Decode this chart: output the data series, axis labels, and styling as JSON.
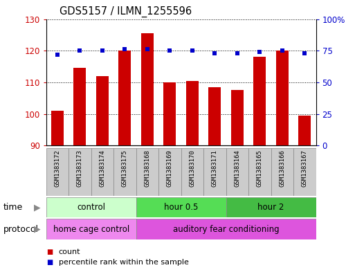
{
  "title": "GDS5157 / ILMN_1255596",
  "samples": [
    "GSM1383172",
    "GSM1383173",
    "GSM1383174",
    "GSM1383175",
    "GSM1383168",
    "GSM1383169",
    "GSM1383170",
    "GSM1383171",
    "GSM1383164",
    "GSM1383165",
    "GSM1383166",
    "GSM1383167"
  ],
  "bar_values": [
    101,
    114.5,
    112,
    120,
    125.5,
    110,
    110.5,
    108.5,
    107.5,
    118,
    120,
    99.5
  ],
  "percentile_values": [
    72,
    75,
    75,
    76,
    76,
    75,
    75,
    73,
    73,
    74,
    75,
    73
  ],
  "ylim_left": [
    90,
    130
  ],
  "ylim_right": [
    0,
    100
  ],
  "yticks_left": [
    90,
    100,
    110,
    120,
    130
  ],
  "yticks_right": [
    0,
    25,
    50,
    75,
    100
  ],
  "bar_color": "#cc0000",
  "percentile_color": "#0000cc",
  "sample_box_color": "#cccccc",
  "time_groups": [
    {
      "label": "control",
      "start": 0,
      "end": 4,
      "color": "#ccffcc"
    },
    {
      "label": "hour 0.5",
      "start": 4,
      "end": 8,
      "color": "#55dd55"
    },
    {
      "label": "hour 2",
      "start": 8,
      "end": 12,
      "color": "#44bb44"
    }
  ],
  "protocol_groups": [
    {
      "label": "home cage control",
      "start": 0,
      "end": 4,
      "color": "#ee88ee"
    },
    {
      "label": "auditory fear conditioning",
      "start": 4,
      "end": 12,
      "color": "#dd55dd"
    }
  ],
  "legend_items": [
    {
      "label": "count",
      "color": "#cc0000"
    },
    {
      "label": "percentile rank within the sample",
      "color": "#0000cc"
    }
  ],
  "time_label": "time",
  "protocol_label": "protocol",
  "bar_width": 0.55
}
